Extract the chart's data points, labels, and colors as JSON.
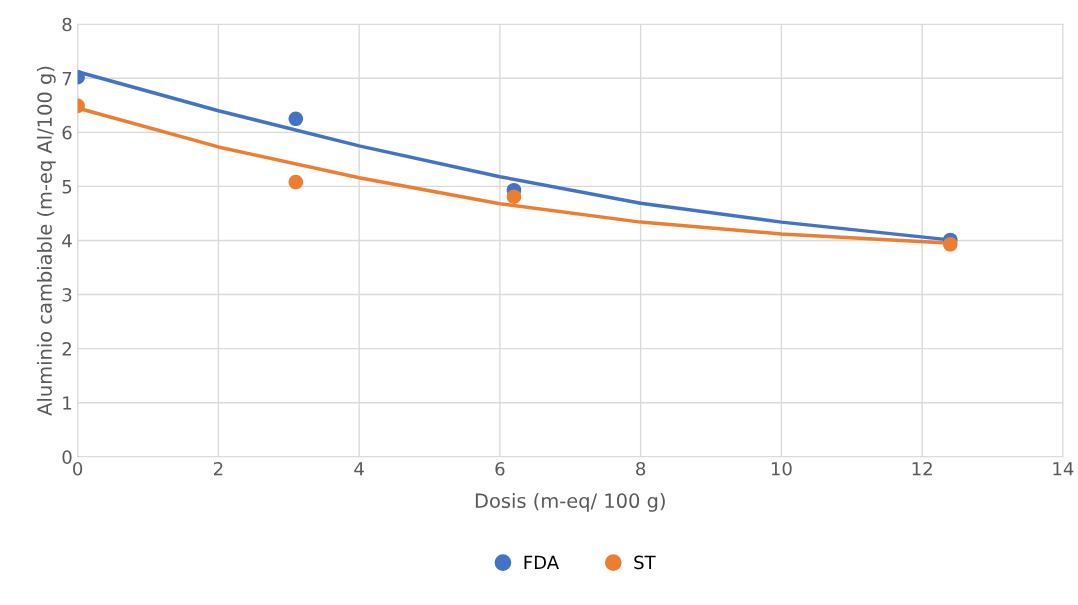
{
  "chart_data": {
    "type": "scatter",
    "xlabel": "Dosis (m-eq/ 100 g)",
    "ylabel": "Aluminio cambiable (m-eq Al/100 g)",
    "xlim": [
      0,
      14
    ],
    "xticks": [
      0,
      2,
      4,
      6,
      8,
      10,
      12,
      14
    ],
    "ylim": [
      0,
      8
    ],
    "yticks": [
      0,
      1,
      2,
      3,
      4,
      5,
      6,
      7,
      8
    ],
    "grid": true,
    "legend": "bottom",
    "marker": "circle",
    "series": [
      {
        "name": "FDA",
        "color": "#4472c4",
        "x": [
          0,
          3.1,
          6.2,
          12.4
        ],
        "values": [
          7.02,
          6.25,
          4.93,
          4.01
        ]
      },
      {
        "name": "ST",
        "color": "#ed7d31",
        "x": [
          0,
          3.1,
          6.2,
          12.4
        ],
        "values": [
          6.49,
          5.08,
          4.81,
          3.93
        ]
      },
      {
        "type": "line",
        "marker": "none",
        "color": "#4472c4",
        "x": [
          0,
          2,
          4,
          6,
          8,
          10,
          12.4
        ],
        "values": [
          7.12,
          6.4,
          5.75,
          5.18,
          4.69,
          4.34,
          4.01
        ]
      },
      {
        "type": "line",
        "marker": "none",
        "color": "#ed7d31",
        "x": [
          0,
          2,
          4,
          6,
          8,
          10,
          12.4
        ],
        "values": [
          6.45,
          5.73,
          5.16,
          4.68,
          4.34,
          4.12,
          3.95
        ]
      }
    ]
  }
}
